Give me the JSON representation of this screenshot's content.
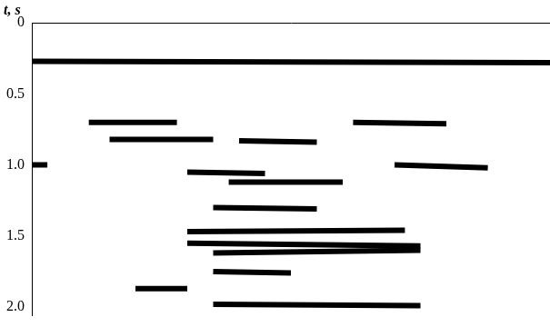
{
  "chart_data": {
    "type": "line",
    "title": "t, s",
    "color": "#000000",
    "line_style": "solid",
    "grid": false,
    "tick_labels": "y",
    "xlim": [
      0,
      100
    ],
    "ylim": [
      0,
      2.06
    ],
    "yticks": [
      0,
      0.5,
      {
        "value": 1,
        "label": "1.0"
      },
      1.5,
      {
        "value": 2,
        "label": "2.0"
      }
    ],
    "series": [
      {
        "x": [
          0,
          100
        ],
        "values": [
          0.27,
          0.28
        ]
      },
      {
        "x": [
          11,
          28
        ],
        "values": [
          0.7,
          0.7
        ]
      },
      {
        "x": [
          62,
          80
        ],
        "values": [
          0.7,
          0.71
        ]
      },
      {
        "x": [
          15,
          35
        ],
        "values": [
          0.82,
          0.82
        ]
      },
      {
        "x": [
          40,
          55
        ],
        "values": [
          0.83,
          0.84
        ]
      },
      {
        "x": [
          0,
          3
        ],
        "values": [
          1.0,
          1.0
        ]
      },
      {
        "x": [
          30,
          45
        ],
        "values": [
          1.05,
          1.06
        ]
      },
      {
        "x": [
          70,
          88
        ],
        "values": [
          1.0,
          1.02
        ]
      },
      {
        "x": [
          38,
          60
        ],
        "values": [
          1.12,
          1.12
        ]
      },
      {
        "x": [
          35,
          55
        ],
        "values": [
          1.3,
          1.31
        ]
      },
      {
        "x": [
          30,
          72
        ],
        "values": [
          1.47,
          1.46
        ]
      },
      {
        "x": [
          30,
          75
        ],
        "values": [
          1.55,
          1.57
        ]
      },
      {
        "x": [
          35,
          75
        ],
        "values": [
          1.62,
          1.6
        ]
      },
      {
        "x": [
          35,
          50
        ],
        "values": [
          1.75,
          1.76
        ]
      },
      {
        "x": [
          20,
          30
        ],
        "values": [
          1.87,
          1.87
        ]
      },
      {
        "x": [
          35,
          75
        ],
        "values": [
          1.98,
          1.99
        ]
      }
    ]
  }
}
